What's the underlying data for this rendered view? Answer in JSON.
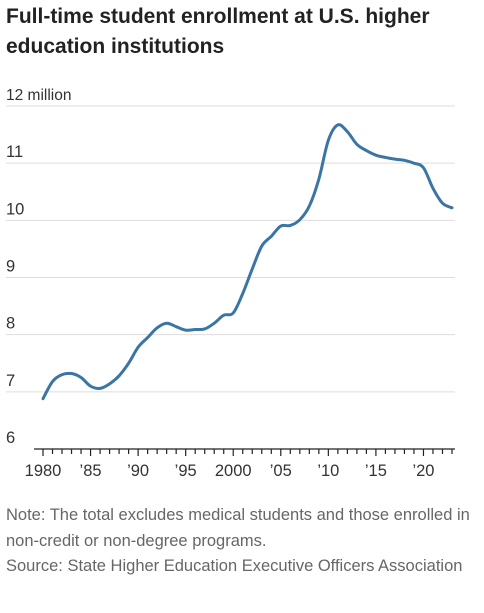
{
  "chart_data": {
    "type": "line",
    "title": "Full-time student enrollment at U.S. higher education institutions",
    "ylabel": "",
    "xlabel": "",
    "y_unit_label": "12 million",
    "ylim": [
      6,
      12
    ],
    "xlim": [
      1980,
      2023
    ],
    "y_ticks": [
      {
        "value": 12,
        "label": "12 million"
      },
      {
        "value": 11,
        "label": "11"
      },
      {
        "value": 10,
        "label": "10"
      },
      {
        "value": 9,
        "label": "9"
      },
      {
        "value": 8,
        "label": "8"
      },
      {
        "value": 7,
        "label": "7"
      },
      {
        "value": 6,
        "label": "6"
      }
    ],
    "x_ticks": [
      {
        "value": 1980,
        "label": "1980"
      },
      {
        "value": 1985,
        "label": "’85"
      },
      {
        "value": 1990,
        "label": "’90"
      },
      {
        "value": 1995,
        "label": "’95"
      },
      {
        "value": 2000,
        "label": "2000"
      },
      {
        "value": 2005,
        "label": "’05"
      },
      {
        "value": 2010,
        "label": "’10"
      },
      {
        "value": 2015,
        "label": "’15"
      },
      {
        "value": 2020,
        "label": "’20"
      }
    ],
    "grid": true,
    "line_color": "#3a75a3",
    "grid_color": "#dddddd",
    "series": [
      {
        "name": "",
        "x": [
          1980,
          1981,
          1982,
          1983,
          1984,
          1985,
          1986,
          1987,
          1988,
          1989,
          1990,
          1991,
          1992,
          1993,
          1994,
          1995,
          1996,
          1997,
          1998,
          1999,
          2000,
          2001,
          2002,
          2003,
          2004,
          2005,
          2006,
          2007,
          2008,
          2009,
          2010,
          2011,
          2012,
          2013,
          2014,
          2015,
          2016,
          2017,
          2018,
          2019,
          2020,
          2021,
          2022,
          2023
        ],
        "y": [
          6.88,
          7.18,
          7.3,
          7.32,
          7.25,
          7.1,
          7.06,
          7.14,
          7.28,
          7.5,
          7.78,
          7.95,
          8.12,
          8.2,
          8.14,
          8.08,
          8.09,
          8.1,
          8.2,
          8.34,
          8.38,
          8.72,
          9.15,
          9.55,
          9.72,
          9.9,
          9.91,
          10.01,
          10.25,
          10.72,
          11.4,
          11.67,
          11.55,
          11.33,
          11.22,
          11.14,
          11.1,
          11.07,
          11.05,
          11.0,
          10.92,
          10.56,
          10.3,
          10.22
        ]
      }
    ]
  },
  "footnote": {
    "note": "Note: The total excludes medical students and those enrolled in non-credit or non-degree programs.",
    "source": "Source: State Higher Education Executive Officers Association"
  }
}
